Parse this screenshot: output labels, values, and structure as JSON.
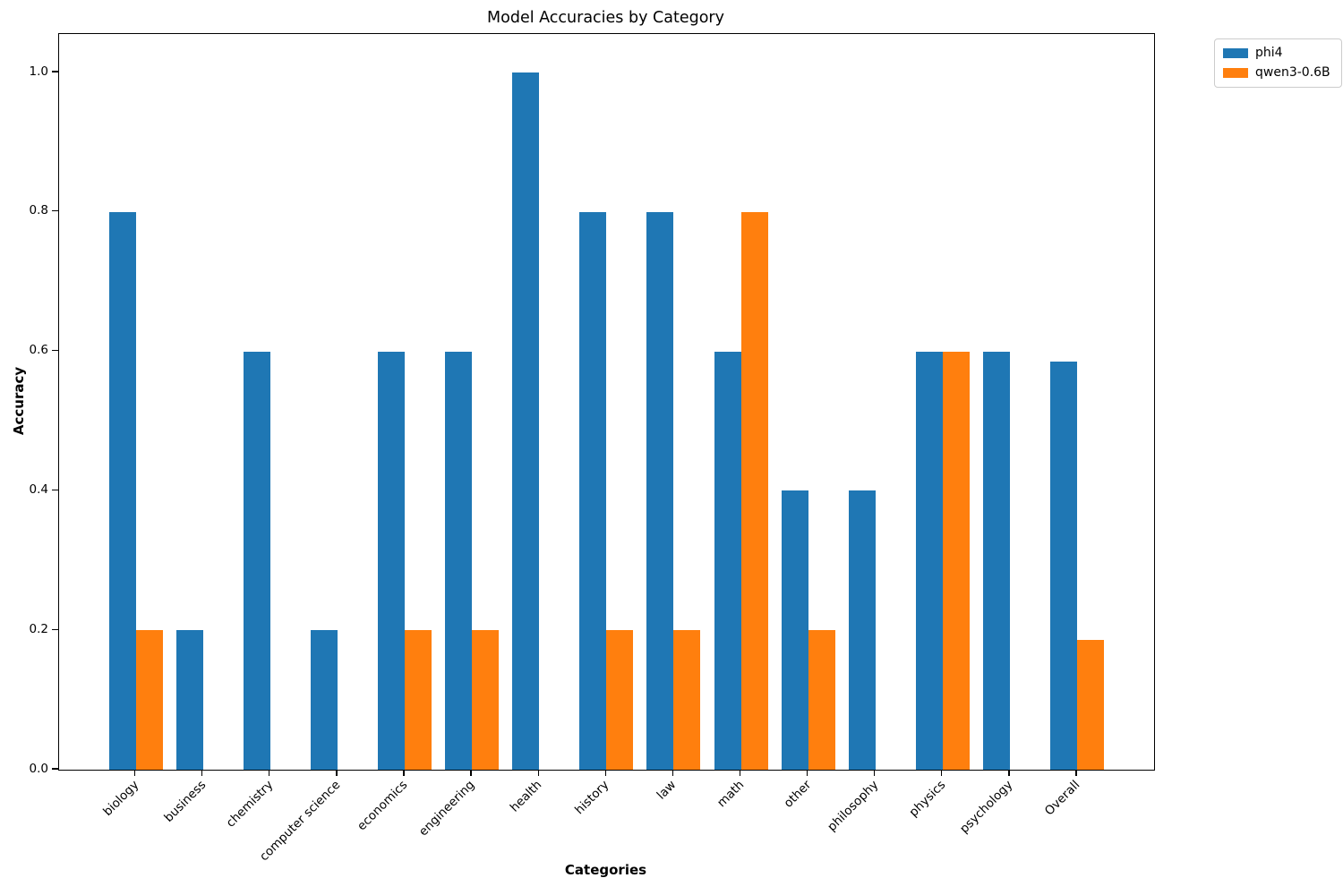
{
  "figure": {
    "title": "Model Accuracies by Category",
    "xlabel": "Categories",
    "ylabel": "Accuracy"
  },
  "legend": {
    "position": "outside-upper-right",
    "entries": [
      {
        "label": "phi4",
        "color": "#1f77b4"
      },
      {
        "label": "qwen3-0.6B",
        "color": "#ff7f0e"
      }
    ]
  },
  "chart_data": {
    "type": "bar",
    "title": "Model Accuracies by Category",
    "xlabel": "Categories",
    "ylabel": "Accuracy",
    "categories": [
      "biology",
      "business",
      "chemistry",
      "computer science",
      "economics",
      "engineering",
      "health",
      "history",
      "law",
      "math",
      "other",
      "philosophy",
      "physics",
      "psychology",
      "Overall"
    ],
    "series": [
      {
        "name": "phi4",
        "color": "#1f77b4",
        "values": [
          0.8,
          0.2,
          0.6,
          0.2,
          0.6,
          0.6,
          1.0,
          0.8,
          0.8,
          0.6,
          0.4,
          0.4,
          0.6,
          0.6,
          0.586
        ]
      },
      {
        "name": "qwen3-0.6B",
        "color": "#ff7f0e",
        "values": [
          0.2,
          0.0,
          0.0,
          0.0,
          0.2,
          0.2,
          0.0,
          0.2,
          0.2,
          0.8,
          0.2,
          0.0,
          0.6,
          0.0,
          0.186
        ]
      }
    ],
    "ylim": [
      0,
      1.055
    ],
    "yticks": [
      0.0,
      0.2,
      0.4,
      0.6,
      0.8,
      1.0
    ],
    "ytick_labels": [
      "0.0",
      "0.2",
      "0.4",
      "0.6",
      "0.8",
      "1.0"
    ],
    "grid": false,
    "legend_position": "outside-upper-right",
    "bar_width": 0.4,
    "xtick_rotation": 45
  }
}
